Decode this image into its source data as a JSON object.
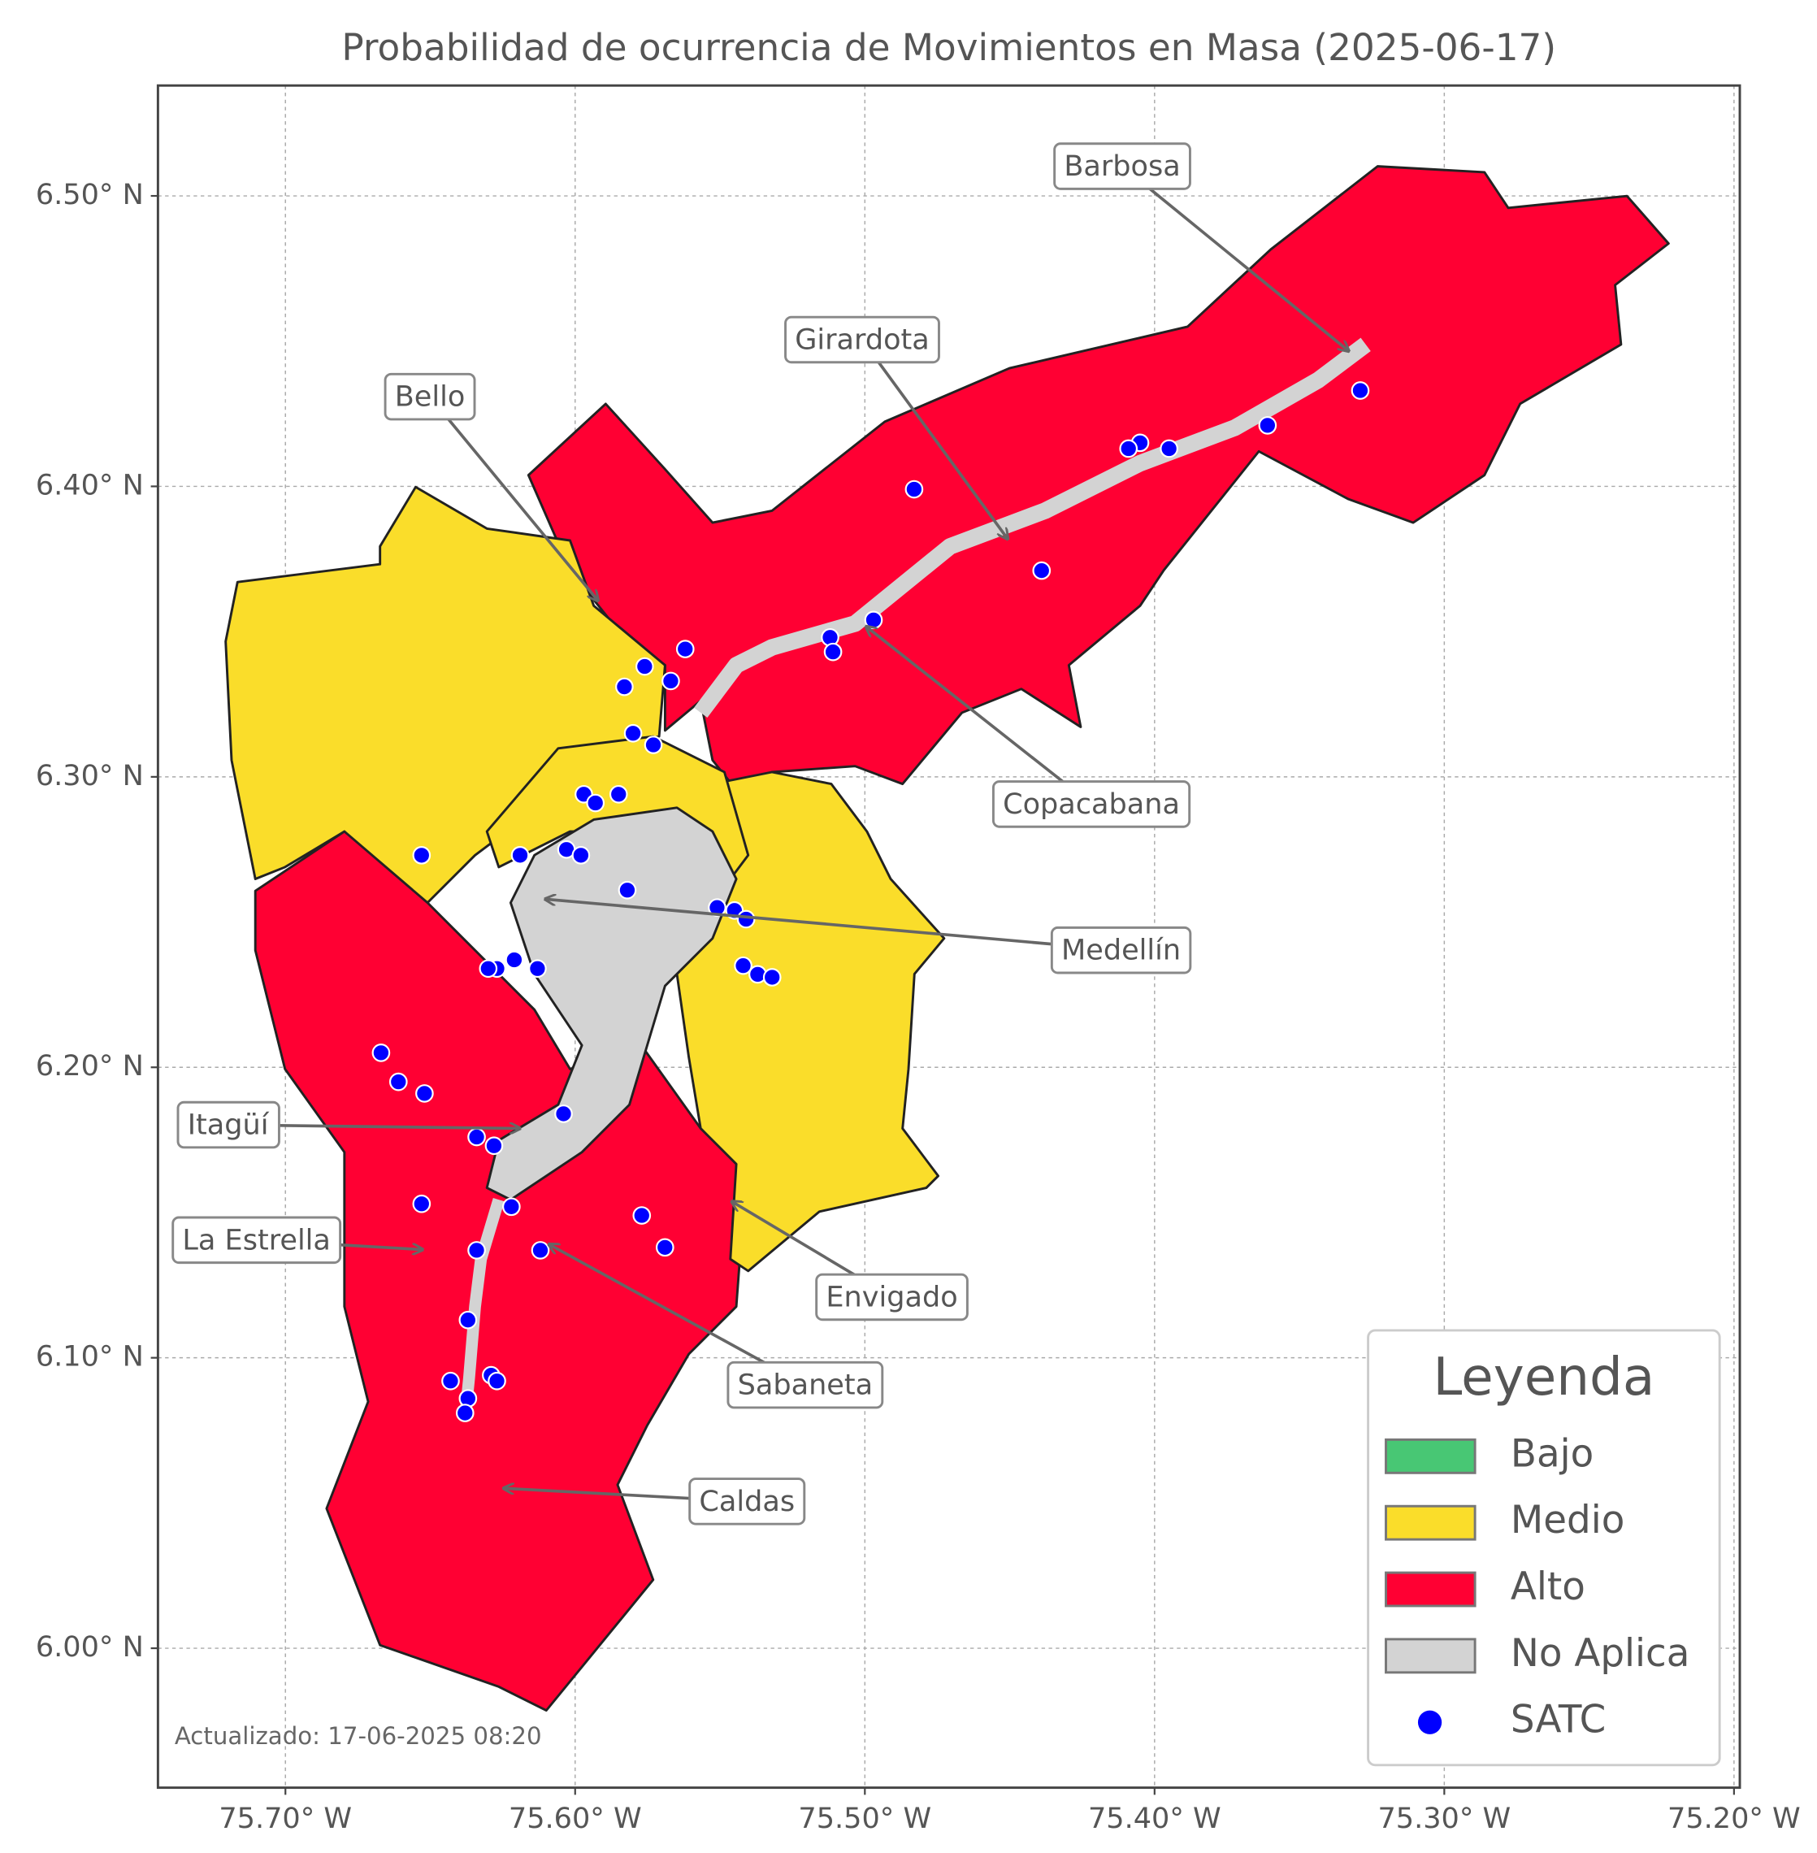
{
  "chart_data": {
    "type": "map",
    "title": "Probabilidad de ocurrencia de Movimientos en Masa (2025-06-17)",
    "xlim": [
      -75.744,
      -75.198
    ],
    "ylim": [
      5.952,
      6.538
    ],
    "xticks": [
      {
        "value": -75.7,
        "label": "75.70° W"
      },
      {
        "value": -75.6,
        "label": "75.60° W"
      },
      {
        "value": -75.5,
        "label": "75.50° W"
      },
      {
        "value": -75.4,
        "label": "75.40° W"
      },
      {
        "value": -75.3,
        "label": "75.30° W"
      },
      {
        "value": -75.2,
        "label": "75.20° W"
      }
    ],
    "yticks": [
      {
        "value": 6.0,
        "label": "6.00° N"
      },
      {
        "value": 6.1,
        "label": "6.10° N"
      },
      {
        "value": 6.2,
        "label": "6.20° N"
      },
      {
        "value": 6.3,
        "label": "6.30° N"
      },
      {
        "value": 6.4,
        "label": "6.40° N"
      },
      {
        "value": 6.5,
        "label": "6.50° N"
      }
    ],
    "grid": true,
    "classes": [
      {
        "name": "Bajo",
        "color": "#48c774"
      },
      {
        "name": "Medio",
        "color": "#fadd2a"
      },
      {
        "name": "Alto",
        "color": "#ff0033"
      },
      {
        "name": "No Aplica",
        "color": "#d3d3d3"
      }
    ],
    "series": [
      {
        "name": "SATC",
        "color": "#0000ff",
        "x": [
          -75.329,
          -75.361,
          -75.395,
          -75.405,
          -75.409,
          -75.483,
          -75.439,
          -75.497,
          -75.512,
          -75.511,
          -75.562,
          -75.576,
          -75.583,
          -75.567,
          -75.58,
          -75.573,
          -75.597,
          -75.593,
          -75.585,
          -75.653,
          -75.619,
          -75.603,
          -75.598,
          -75.582,
          -75.551,
          -75.545,
          -75.541,
          -75.542,
          -75.537,
          -75.532,
          -75.621,
          -75.627,
          -75.63,
          -75.613,
          -75.667,
          -75.661,
          -75.652,
          -75.604,
          -75.634,
          -75.628,
          -75.653,
          -75.622,
          -75.577,
          -75.569,
          -75.634,
          -75.612,
          -75.637,
          -75.643,
          -75.629,
          -75.627,
          -75.637,
          -75.638
        ],
        "values": [
          6.433,
          6.421,
          6.413,
          6.415,
          6.413,
          6.399,
          6.371,
          6.354,
          6.348,
          6.343,
          6.344,
          6.338,
          6.331,
          6.333,
          6.315,
          6.311,
          6.294,
          6.291,
          6.294,
          6.273,
          6.273,
          6.275,
          6.273,
          6.261,
          6.255,
          6.254,
          6.251,
          6.235,
          6.232,
          6.231,
          6.237,
          6.234,
          6.234,
          6.234,
          6.205,
          6.195,
          6.191,
          6.184,
          6.176,
          6.173,
          6.153,
          6.152,
          6.149,
          6.138,
          6.137,
          6.137,
          6.113,
          6.092,
          6.094,
          6.092,
          6.086,
          6.081
        ]
      }
    ],
    "annotations": [
      "Barbosa",
      "Girardota",
      "Bello",
      "Copacabana",
      "Medellín",
      "Itagüí",
      "La Estrella",
      "Envigado",
      "Sabaneta",
      "Caldas"
    ],
    "legend": {
      "title": "Leyenda",
      "corner": "lower right"
    },
    "footnote": "Actualizado: 17-06-2025 08:20"
  }
}
